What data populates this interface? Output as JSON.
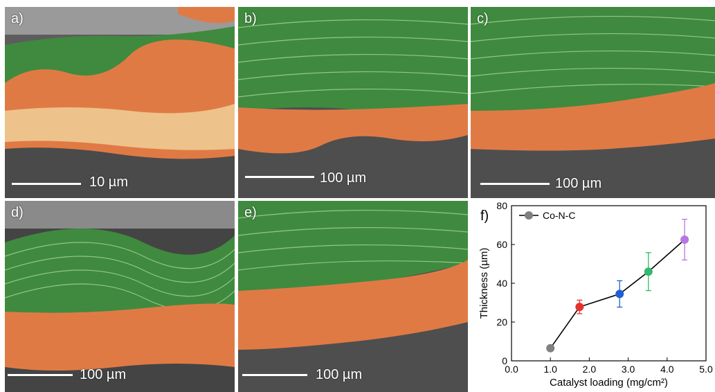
{
  "colors": {
    "fiber": "#3f8a3f",
    "fiber_highlight": "#b9e0a8",
    "catalyst": "#e07a45",
    "catalyst_light": "#f1d49c",
    "background": "#5a5a5a",
    "dark_background": "#3e3e3e",
    "scale": "#ffffff"
  },
  "panels": [
    {
      "label": "a)",
      "scale": "10 µm"
    },
    {
      "label": "b)",
      "scale": "100 µm"
    },
    {
      "label": "c)",
      "scale": "100 µm"
    },
    {
      "label": "d)",
      "scale": "100 µm"
    },
    {
      "label": "e)",
      "scale": "100 µm"
    }
  ],
  "chart_data": {
    "type": "scatter",
    "panel_label": "f)",
    "xlabel": "Catalyst loading (mg/cm²)",
    "ylabel": "Thickness (µm)",
    "xlim": [
      0.0,
      5.0
    ],
    "ylim": [
      0,
      80
    ],
    "x_ticks": [
      "0.0",
      "1.0",
      "2.0",
      "3.0",
      "4.0",
      "5.0"
    ],
    "y_ticks": [
      "0",
      "20",
      "40",
      "60",
      "80"
    ],
    "legend": {
      "position": "top-left",
      "label": "Co-N-C"
    },
    "series": [
      {
        "name": "Co-N-C",
        "x": [
          1.0,
          1.75,
          2.78,
          3.52,
          4.45
        ],
        "y": [
          6.5,
          27.8,
          34.5,
          46,
          62.5
        ],
        "err": [
          0,
          3.5,
          6.8,
          9.8,
          10.5
        ],
        "colors": [
          "#808080",
          "#e8312b",
          "#1f5fd6",
          "#34b86a",
          "#b877e0"
        ]
      }
    ]
  }
}
